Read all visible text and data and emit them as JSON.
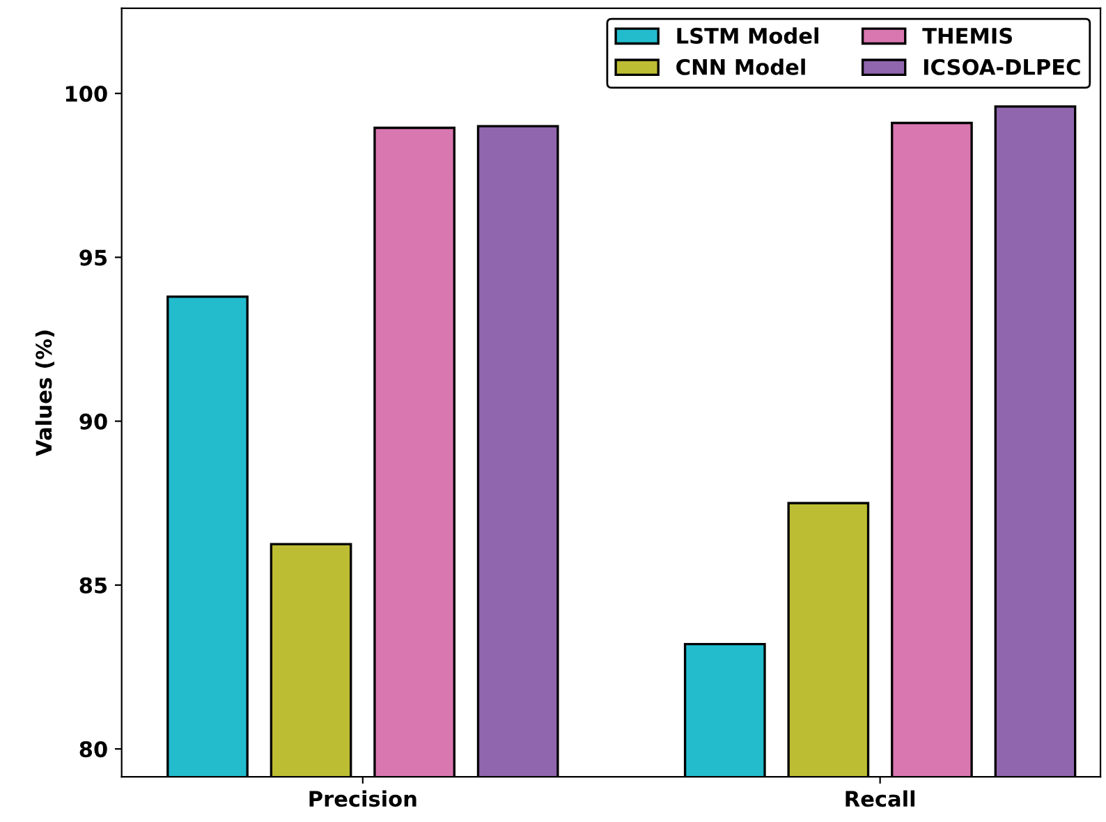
{
  "chart_data": {
    "type": "bar",
    "ylabel": "Values (%)",
    "categories": [
      "Precision",
      "Recall"
    ],
    "series": [
      {
        "name": "LSTM Model",
        "color": "#22bccd",
        "values": [
          93.8,
          83.2
        ]
      },
      {
        "name": "CNN Model",
        "color": "#bdbd33",
        "values": [
          86.25,
          87.5
        ]
      },
      {
        "name": "THEMIS",
        "color": "#d877b0",
        "values": [
          98.95,
          99.1
        ]
      },
      {
        "name": "ICSOA-DLPEC",
        "color": "#9066ae",
        "values": [
          99.0,
          99.6
        ]
      }
    ],
    "ylim": [
      79.15,
      102.6
    ],
    "yticks": [
      80,
      85,
      90,
      95,
      100
    ],
    "grid": false,
    "legend": "top right"
  }
}
